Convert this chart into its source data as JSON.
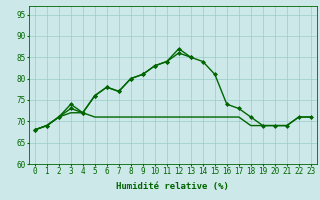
{
  "x": [
    0,
    1,
    2,
    3,
    4,
    5,
    6,
    7,
    8,
    9,
    10,
    11,
    12,
    13,
    14,
    15,
    16,
    17,
    18,
    19,
    20,
    21,
    22,
    23
  ],
  "line1": [
    68,
    69,
    71,
    73,
    72,
    76,
    78,
    77,
    80,
    81,
    83,
    84,
    86,
    85,
    84,
    81,
    74,
    73,
    71,
    69,
    69,
    69,
    71,
    71
  ],
  "line2": [
    68,
    69,
    71,
    74,
    72,
    76,
    78,
    77,
    80,
    81,
    83,
    84,
    87,
    85,
    null,
    null,
    null,
    null,
    null,
    null,
    null,
    null,
    null,
    null
  ],
  "line3": [
    68,
    69,
    71,
    72,
    72,
    71,
    71,
    71,
    71,
    71,
    71,
    71,
    71,
    71,
    71,
    71,
    71,
    71,
    69,
    69,
    69,
    69,
    71,
    71
  ],
  "ylim": [
    60,
    97
  ],
  "yticks": [
    60,
    65,
    70,
    75,
    80,
    85,
    90,
    95
  ],
  "xlabel": "Humidité relative (%)",
  "bg_color": "#cce8e8",
  "grid_color": "#99cccc",
  "line_color": "#006600",
  "marker": "D",
  "marker_size": 2.0,
  "line_width": 1.0,
  "xlabel_fontsize": 6.5,
  "tick_fontsize": 5.5
}
